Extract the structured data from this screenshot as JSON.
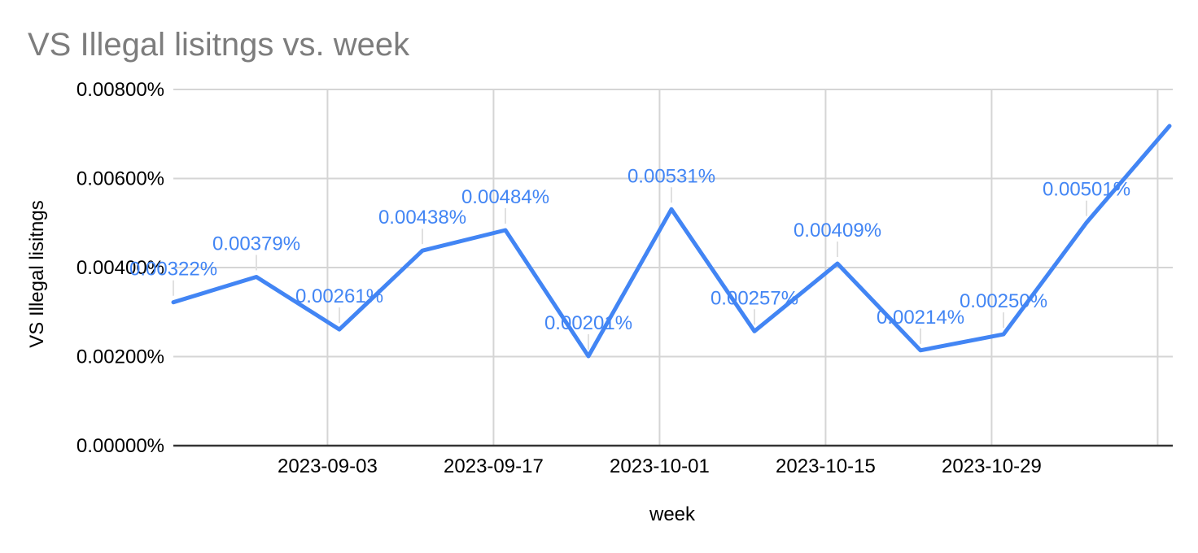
{
  "chart_data": {
    "type": "line",
    "title": "VS Illegal lisitngs vs. week",
    "xlabel": "week",
    "ylabel": "VS Illegal lisitngs",
    "legend": "none",
    "grid": true,
    "ylim_percent": [
      0,
      0.008
    ],
    "x_span_days": 84,
    "colors": {
      "series": "#4285f4",
      "data_label": "#4285f4",
      "gridline": "#d5d5d5",
      "axis_line": "#333333",
      "leader_line": "#e0e0e0",
      "tick_text": "#000000",
      "title_text": "#7d7d7d",
      "background": "#ffffff"
    },
    "y_ticks": [
      {
        "label": "0.00000%",
        "value": 0.0
      },
      {
        "label": "0.00200%",
        "value": 0.002
      },
      {
        "label": "0.00400%",
        "value": 0.004
      },
      {
        "label": "0.00600%",
        "value": 0.006
      },
      {
        "label": "0.00800%",
        "value": 0.008
      }
    ],
    "x_ticks": [
      {
        "label": "2023-09-03",
        "day": 13
      },
      {
        "label": "2023-09-17",
        "day": 27
      },
      {
        "label": "2023-10-01",
        "day": 41
      },
      {
        "label": "2023-10-15",
        "day": 55
      },
      {
        "label": "2023-10-29",
        "day": 69
      },
      {
        "label": "",
        "day": 83
      }
    ],
    "series": [
      {
        "name": "VS Illegal lisitngs",
        "color": "#4285f4",
        "points": [
          {
            "day": 0,
            "value": 0.00322,
            "label": "0.00322%"
          },
          {
            "day": 7,
            "value": 0.00379,
            "label": "0.00379%"
          },
          {
            "day": 14,
            "value": 0.00261,
            "label": "0.00261%"
          },
          {
            "day": 21,
            "value": 0.00438,
            "label": "0.00438%"
          },
          {
            "day": 28,
            "value": 0.00484,
            "label": "0.00484%"
          },
          {
            "day": 35,
            "value": 0.00201,
            "label": "0.00201%"
          },
          {
            "day": 42,
            "value": 0.00531,
            "label": "0.00531%"
          },
          {
            "day": 49,
            "value": 0.00257,
            "label": "0.00257%"
          },
          {
            "day": 56,
            "value": 0.00409,
            "label": "0.00409%"
          },
          {
            "day": 63,
            "value": 0.00214,
            "label": "0.00214%"
          },
          {
            "day": 70,
            "value": 0.0025,
            "label": "0.00250%"
          },
          {
            "day": 77,
            "value": 0.00501,
            "label": "0.00501%"
          },
          {
            "day": 84,
            "value": 0.00718,
            "label": ""
          }
        ]
      }
    ]
  }
}
